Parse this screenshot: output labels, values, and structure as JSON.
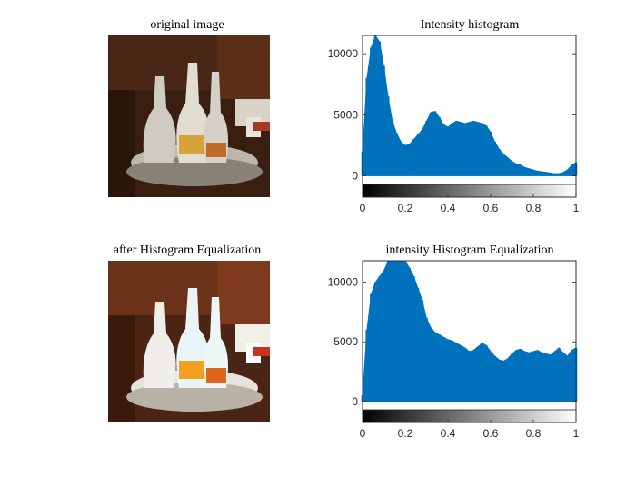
{
  "figure": {
    "images": [
      {
        "title": "original image",
        "description": "photo of glass cruet bottles on a silver tray"
      },
      {
        "title": "after Histogram Equalization",
        "description": "same photo, contrast-enhanced"
      }
    ]
  },
  "chart_data": [
    {
      "type": "bar",
      "title": "Intensity histogram",
      "xlabel": "",
      "ylabel": "",
      "xlim": [
        0,
        1
      ],
      "ylim": [
        -700,
        11500
      ],
      "xticks": [
        "0",
        "0.2",
        "0.4",
        "0.6",
        "0.8",
        "1"
      ],
      "yticks": [
        "0",
        "5000",
        "10000"
      ],
      "colorbar": "grayscale 0-1",
      "bar_color": "#0072BD",
      "series": [
        {
          "x": [
            0.0,
            0.02,
            0.04,
            0.06,
            0.08,
            0.1,
            0.12,
            0.14,
            0.16,
            0.18,
            0.2,
            0.22,
            0.24,
            0.26,
            0.28,
            0.3,
            0.32,
            0.34,
            0.36,
            0.38,
            0.4,
            0.42,
            0.44,
            0.46,
            0.48,
            0.5,
            0.52,
            0.54,
            0.56,
            0.58,
            0.6,
            0.62,
            0.64,
            0.66,
            0.68,
            0.7,
            0.72,
            0.74,
            0.76,
            0.78,
            0.8,
            0.82,
            0.84,
            0.86,
            0.88,
            0.9,
            0.92,
            0.94,
            0.96,
            0.98,
            1.0
          ],
          "values": [
            2000,
            8000,
            10500,
            11500,
            11000,
            9000,
            6500,
            4500,
            3500,
            2800,
            2500,
            2600,
            3000,
            3400,
            3800,
            4500,
            5200,
            5300,
            4800,
            4200,
            4000,
            4300,
            4500,
            4400,
            4300,
            4400,
            4500,
            4400,
            4300,
            4100,
            3600,
            2800,
            2200,
            1800,
            1500,
            1200,
            1000,
            900,
            700,
            600,
            500,
            400,
            350,
            300,
            250,
            200,
            200,
            300,
            500,
            900,
            1100
          ]
        }
      ]
    },
    {
      "type": "bar",
      "title": "intensity Histogram Equalization",
      "xlabel": "",
      "ylabel": "",
      "xlim": [
        0,
        1
      ],
      "ylim": [
        -700,
        11800
      ],
      "xticks": [
        "0",
        "0.2",
        "0.4",
        "0.6",
        "0.8",
        "1"
      ],
      "yticks": [
        "0",
        "5000",
        "10000"
      ],
      "colorbar": "grayscale 0-1",
      "bar_color": "#0072BD",
      "series": [
        {
          "x": [
            0.0,
            0.02,
            0.04,
            0.06,
            0.08,
            0.1,
            0.12,
            0.14,
            0.16,
            0.18,
            0.2,
            0.22,
            0.24,
            0.26,
            0.28,
            0.3,
            0.32,
            0.34,
            0.36,
            0.38,
            0.4,
            0.42,
            0.44,
            0.46,
            0.48,
            0.5,
            0.52,
            0.54,
            0.56,
            0.58,
            0.6,
            0.62,
            0.64,
            0.66,
            0.68,
            0.7,
            0.72,
            0.74,
            0.76,
            0.78,
            0.8,
            0.82,
            0.84,
            0.86,
            0.88,
            0.9,
            0.92,
            0.94,
            0.96,
            0.98,
            1.0
          ],
          "values": [
            500,
            6000,
            9000,
            10000,
            10500,
            11000,
            11800,
            11800,
            11800,
            11800,
            11800,
            11200,
            10500,
            9500,
            8500,
            7000,
            6200,
            5800,
            5600,
            5400,
            5200,
            5100,
            4900,
            4700,
            4500,
            4200,
            4300,
            4600,
            4900,
            4700,
            4200,
            3800,
            3500,
            3400,
            3600,
            4000,
            4300,
            4400,
            4200,
            4100,
            4200,
            4300,
            4100,
            4000,
            3900,
            4200,
            4500,
            4100,
            3800,
            4300,
            4500
          ]
        }
      ]
    }
  ]
}
